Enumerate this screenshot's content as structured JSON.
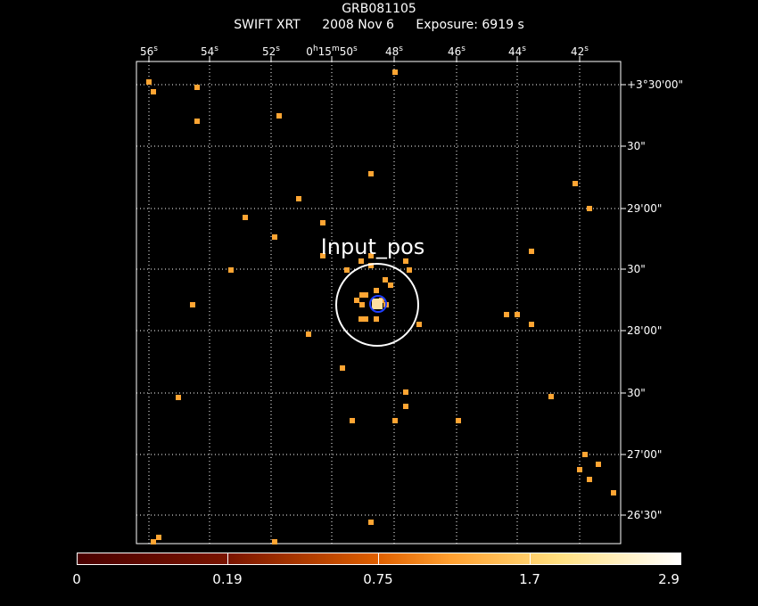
{
  "title": "GRB081105",
  "subtitle": {
    "instrument": "SWIFT XRT",
    "date": "2008 Nov  6",
    "exposure": "Exposure: 6919 s"
  },
  "ra_ticks": [
    {
      "label": "56s"
    },
    {
      "label": "54s"
    },
    {
      "label": "52s"
    },
    {
      "label": "0h15m50s"
    },
    {
      "label": "48s"
    },
    {
      "label": "46s"
    },
    {
      "label": "44s"
    },
    {
      "label": "42s"
    }
  ],
  "dec_ticks": [
    {
      "label": "+3°30'00\""
    },
    {
      "label": "30\""
    },
    {
      "label": "29'00\""
    },
    {
      "label": "30\""
    },
    {
      "label": "28'00\""
    },
    {
      "label": "30\""
    },
    {
      "label": "27'00\""
    },
    {
      "label": "26'30\""
    }
  ],
  "region_label": "Input_pos",
  "colorbar": {
    "labels": [
      "0",
      "0.19",
      "0.75",
      "1.7",
      "2.9"
    ]
  },
  "colors": {
    "pixel": "#ffa533",
    "source_core": "#ffe0a0",
    "circle_outer": "#ffffff",
    "circle_inner": "#2040ff",
    "grid": "#ffffff"
  }
}
